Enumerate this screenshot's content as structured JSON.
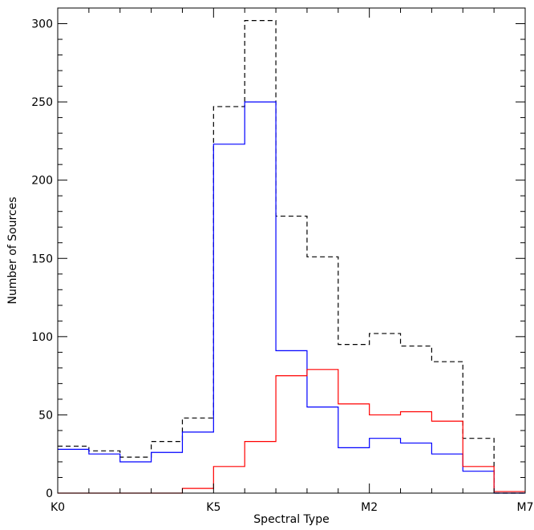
{
  "chart_data": {
    "type": "step",
    "xlabel": "Spectral Type",
    "ylabel": "Number of Sources",
    "x_tick_positions": [
      0,
      5,
      10,
      15
    ],
    "x_tick_labels": [
      "K0",
      "K5",
      "M2",
      "M7"
    ],
    "x_minor_step": 1,
    "xlim": [
      0,
      15
    ],
    "ylim": [
      0,
      310
    ],
    "y_ticks": [
      0,
      50,
      100,
      150,
      200,
      250,
      300
    ],
    "y_minor_step": 10,
    "bins": [
      [
        0,
        1
      ],
      [
        1,
        2
      ],
      [
        2,
        3
      ],
      [
        3,
        4
      ],
      [
        4,
        5
      ],
      [
        5,
        6
      ],
      [
        6,
        7
      ],
      [
        7,
        8
      ],
      [
        8,
        9
      ],
      [
        9,
        10
      ],
      [
        10,
        11
      ],
      [
        11,
        12
      ],
      [
        12,
        13
      ],
      [
        13,
        14
      ],
      [
        14,
        15
      ]
    ],
    "series": [
      {
        "style": "dashed",
        "color": "#000000",
        "values": [
          30,
          27,
          23,
          33,
          48,
          247,
          302,
          177,
          151,
          95,
          102,
          94,
          84,
          35,
          0
        ]
      },
      {
        "style": "solid",
        "color": "#0000ff",
        "values": [
          28,
          25,
          20,
          26,
          39,
          223,
          250,
          91,
          55,
          29,
          35,
          32,
          25,
          14,
          0
        ]
      },
      {
        "style": "solid",
        "color": "#ff0000",
        "values": [
          0,
          0,
          0,
          0,
          3,
          17,
          33,
          75,
          79,
          57,
          50,
          52,
          46,
          17,
          1
        ]
      }
    ]
  }
}
